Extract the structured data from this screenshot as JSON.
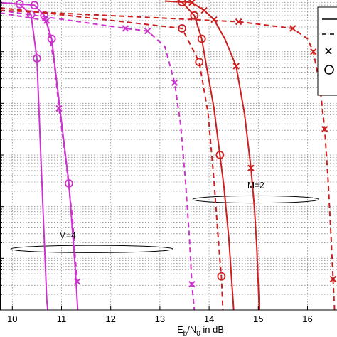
{
  "chart_data": {
    "type": "line",
    "xlabel": {
      "main": "E",
      "sub1": "b",
      "mid": "/N",
      "sub2": "0",
      "tail": " in dB"
    },
    "xlim": [
      9.75,
      16.6
    ],
    "ylim_log10": [
      -6,
      0
    ],
    "grid": true,
    "x_ticks": [
      10,
      11,
      12,
      13,
      14,
      15,
      16
    ],
    "x_tick_labels": [
      "10",
      "11",
      "12",
      "13",
      "14",
      "15",
      "16"
    ],
    "colors": {
      "magenta": "#cc33cc",
      "red": "#cc1f1f",
      "black": "#000000"
    },
    "annotations": [
      {
        "text": "M=4",
        "x": 11.12,
        "y_log10": -4.62
      },
      {
        "text": "M=2",
        "x": 14.95,
        "y_log10": -3.64
      }
    ],
    "ellipses": [
      {
        "cx": 11.62,
        "cy_log10": -4.82,
        "rx": 1.65,
        "ry_log10": 0.07
      },
      {
        "cx": 14.95,
        "cy_log10": -3.86,
        "rx": 1.28,
        "ry_log10": 0.07
      }
    ],
    "legend_position": "top-right",
    "legend_markers": [
      "solid-line",
      "dashed-line",
      "x-marker",
      "circle-marker"
    ],
    "series": [
      {
        "color": "magenta",
        "style": "solid",
        "marker": "o",
        "points": [
          [
            9.75,
            -0.05
          ],
          [
            10.15,
            -0.08
          ],
          [
            10.38,
            -0.28
          ],
          [
            10.5,
            -1.13
          ],
          [
            10.6,
            -3.5
          ],
          [
            10.7,
            -5.8
          ],
          [
            10.72,
            -6
          ]
        ],
        "markers": [
          [
            10.15,
            -0.08
          ],
          [
            10.38,
            -0.28
          ],
          [
            10.5,
            -1.13
          ]
        ]
      },
      {
        "color": "magenta",
        "style": "solid",
        "marker": "o",
        "points": [
          [
            9.75,
            -0.05
          ],
          [
            10.45,
            -0.1
          ],
          [
            10.65,
            -0.3
          ],
          [
            10.8,
            -0.75
          ],
          [
            10.98,
            -2.2
          ],
          [
            11.15,
            -3.55
          ],
          [
            11.28,
            -5.2
          ],
          [
            11.33,
            -6
          ]
        ],
        "markers": [
          [
            10.45,
            -0.1
          ],
          [
            10.65,
            -0.3
          ],
          [
            10.8,
            -0.75
          ],
          [
            11.15,
            -3.55
          ]
        ]
      },
      {
        "color": "magenta",
        "style": "dashed",
        "marker": "x",
        "points": [
          [
            9.75,
            -0.25
          ],
          [
            10.7,
            -0.4
          ],
          [
            10.85,
            -1.2
          ],
          [
            10.95,
            -2.1
          ],
          [
            11.1,
            -3.2
          ],
          [
            11.22,
            -4.2
          ],
          [
            11.28,
            -5.0
          ],
          [
            11.32,
            -5.45
          ]
        ],
        "markers": [
          [
            10.7,
            -0.4
          ],
          [
            10.95,
            -2.1
          ],
          [
            11.32,
            -5.45
          ]
        ]
      },
      {
        "color": "magenta",
        "style": "dashed",
        "marker": "x",
        "points": [
          [
            9.75,
            -0.2
          ],
          [
            12.3,
            -0.55
          ],
          [
            12.75,
            -0.6
          ],
          [
            13.1,
            -0.9
          ],
          [
            13.3,
            -1.6
          ],
          [
            13.42,
            -2.4
          ],
          [
            13.52,
            -3.5
          ],
          [
            13.6,
            -4.6
          ],
          [
            13.65,
            -5.5
          ],
          [
            13.7,
            -6
          ]
        ],
        "markers": [
          [
            12.3,
            -0.55
          ],
          [
            12.75,
            -0.6
          ],
          [
            13.3,
            -1.6
          ],
          [
            13.65,
            -5.5
          ]
        ]
      },
      {
        "color": "red",
        "style": "solid",
        "marker": "o",
        "points": [
          [
            13.1,
            -0.02
          ],
          [
            13.45,
            -0.04
          ],
          [
            13.7,
            -0.3
          ],
          [
            13.85,
            -0.75
          ],
          [
            13.95,
            -1.3
          ],
          [
            14.1,
            -2.1
          ],
          [
            14.22,
            -3.0
          ],
          [
            14.3,
            -3.6
          ],
          [
            14.4,
            -4.6
          ],
          [
            14.45,
            -5.3
          ],
          [
            14.5,
            -6
          ]
        ],
        "markers": [
          [
            13.45,
            -0.04
          ],
          [
            13.7,
            -0.3
          ],
          [
            13.85,
            -0.75
          ],
          [
            14.22,
            -3.0
          ]
        ]
      },
      {
        "color": "red",
        "style": "solid",
        "marker": "x",
        "points": [
          [
            13.35,
            -0.02
          ],
          [
            13.65,
            -0.05
          ],
          [
            13.9,
            -0.2
          ],
          [
            14.1,
            -0.38
          ],
          [
            14.32,
            -0.75
          ],
          [
            14.55,
            -1.28
          ],
          [
            14.72,
            -2.2
          ],
          [
            14.85,
            -3.25
          ],
          [
            14.92,
            -4.0
          ],
          [
            14.97,
            -4.8
          ],
          [
            15.02,
            -6
          ]
        ],
        "markers": [
          [
            13.65,
            -0.05
          ],
          [
            13.9,
            -0.2
          ],
          [
            14.1,
            -0.38
          ],
          [
            14.55,
            -1.28
          ],
          [
            14.85,
            -3.25
          ]
        ]
      },
      {
        "color": "red",
        "style": "dashed",
        "marker": "o",
        "points": [
          [
            9.75,
            -0.15
          ],
          [
            13.45,
            -0.55
          ],
          [
            13.8,
            -1.2
          ],
          [
            13.98,
            -2.2
          ],
          [
            14.1,
            -3.5
          ],
          [
            14.2,
            -4.8
          ],
          [
            14.25,
            -5.35
          ],
          [
            14.28,
            -6
          ]
        ],
        "markers": [
          [
            13.45,
            -0.55
          ],
          [
            13.8,
            -1.2
          ],
          [
            14.25,
            -5.35
          ]
        ]
      },
      {
        "color": "red",
        "style": "dashed",
        "marker": "x",
        "points": [
          [
            9.75,
            -0.2
          ],
          [
            14.6,
            -0.42
          ],
          [
            15.7,
            -0.55
          ],
          [
            16.0,
            -0.75
          ],
          [
            16.12,
            -1.0
          ],
          [
            16.25,
            -1.65
          ],
          [
            16.35,
            -2.5
          ],
          [
            16.42,
            -3.5
          ],
          [
            16.48,
            -4.6
          ],
          [
            16.52,
            -5.4
          ],
          [
            16.55,
            -6
          ]
        ],
        "markers": [
          [
            14.6,
            -0.42
          ],
          [
            15.7,
            -0.55
          ],
          [
            16.12,
            -1.0
          ],
          [
            16.35,
            -2.5
          ],
          [
            16.52,
            -5.4
          ]
        ]
      }
    ]
  }
}
